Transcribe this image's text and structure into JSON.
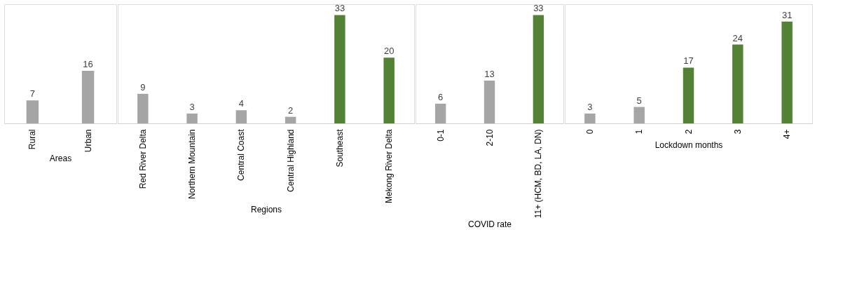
{
  "chart_data": [
    {
      "type": "bar",
      "xlabel": "Areas",
      "categories": [
        "Rural",
        "Urban"
      ],
      "values": [
        7,
        16
      ],
      "colors": [
        "#a5a5a5",
        "#a5a5a5"
      ],
      "data_labels": true
    },
    {
      "type": "bar",
      "xlabel": "Regions",
      "categories": [
        "Red River Delta",
        "Northern Mountain",
        "Central Coast",
        "Central Highland",
        "Southeast",
        "Mekong River Delta"
      ],
      "values": [
        9,
        3,
        4,
        2,
        33,
        20
      ],
      "colors": [
        "#a5a5a5",
        "#a5a5a5",
        "#a5a5a5",
        "#a5a5a5",
        "#548235",
        "#548235"
      ],
      "data_labels": true
    },
    {
      "type": "bar",
      "xlabel": "COVID rate",
      "categories": [
        "0-1",
        "2-10",
        "11+ (HCM, BD, LA, DN)"
      ],
      "values": [
        6,
        13,
        33
      ],
      "colors": [
        "#a5a5a5",
        "#a5a5a5",
        "#548235"
      ],
      "data_labels": true
    },
    {
      "type": "bar",
      "xlabel": "Lockdown months",
      "categories": [
        "0",
        "1",
        "2",
        "3",
        "4+"
      ],
      "values": [
        3,
        5,
        17,
        24,
        31
      ],
      "colors": [
        "#a5a5a5",
        "#a5a5a5",
        "#548235",
        "#548235",
        "#548235"
      ],
      "data_labels": true
    }
  ]
}
